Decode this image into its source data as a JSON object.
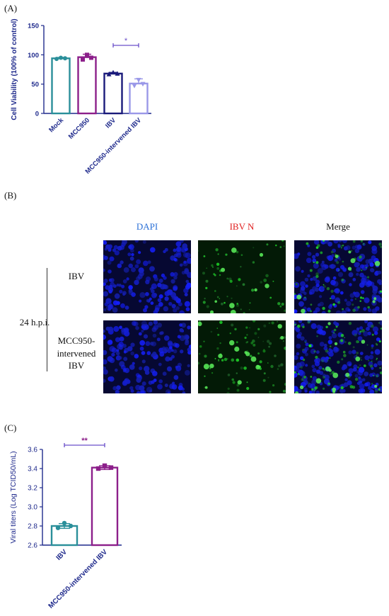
{
  "panels": {
    "a_label": "(A)",
    "b_label": "(B)",
    "c_label": "(C)"
  },
  "colors": {
    "axis": "#1f2a8c",
    "mock": "#2a8f9a",
    "mcc950": "#8c1f8a",
    "ibv": "#1a1a7a",
    "mcc950_ibv": "#9a98e8",
    "sig_a": "#6a4fc9",
    "sig_c": "#8c1f8a",
    "dapi": "#2a6fd6",
    "ibvn": "#e02020",
    "merge": "#111111"
  },
  "chart_data": [
    {
      "type": "bar",
      "panel": "A",
      "categories": [
        "Mock",
        "MCC950",
        "IBV",
        "MCC950-intervened IBV"
      ],
      "values": [
        94,
        96,
        68,
        51
      ],
      "errors": [
        1.5,
        5,
        2,
        8
      ],
      "points": [
        [
          93,
          95,
          94
        ],
        [
          92,
          100,
          95
        ],
        [
          67,
          70,
          68
        ],
        [
          47,
          57,
          50
        ]
      ],
      "ylabel": "Cell Viability (100% of control)",
      "ylim": [
        0,
        150
      ],
      "yticks": [
        "0",
        "50",
        "100",
        "150"
      ],
      "significance": {
        "from": 2,
        "to": 3,
        "label": "*"
      }
    },
    {
      "type": "bar",
      "panel": "C",
      "categories": [
        "IBV",
        "MCC950-intervened IBV"
      ],
      "values": [
        2.8,
        3.41
      ],
      "errors": [
        0.025,
        0.02
      ],
      "points": [
        [
          2.78,
          2.83,
          2.8
        ],
        [
          3.4,
          3.43,
          3.41
        ]
      ],
      "ylabel": "Viral titers (Log TCID50/mL)",
      "ylim": [
        2.6,
        3.6
      ],
      "yticks": [
        "2.6",
        "2.8",
        "3.0",
        "3.2",
        "3.4",
        "3.6"
      ],
      "significance": {
        "from": 0,
        "to": 1,
        "label": "**"
      }
    }
  ],
  "microscopy": {
    "columns": [
      "DAPI",
      "IBV N",
      "Merge"
    ],
    "timepoint": "24 h.p.i.",
    "rows": [
      "IBV",
      "MCC950-intervened IBV"
    ]
  }
}
